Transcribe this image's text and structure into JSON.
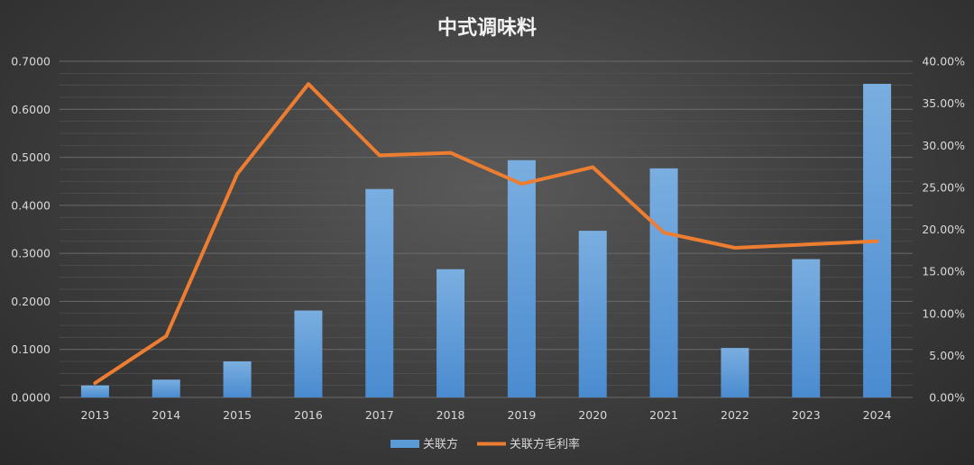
{
  "chart_data": {
    "type": "bar",
    "title": "中式调味料",
    "categories": [
      "2013",
      "2014",
      "2015",
      "2016",
      "2017",
      "2018",
      "2019",
      "2020",
      "2021",
      "2022",
      "2023",
      "2024"
    ],
    "series": [
      {
        "name": "关联方",
        "type": "bar",
        "axis": "left",
        "color": "#5b9bd5",
        "values": [
          0.025,
          0.037,
          0.075,
          0.181,
          0.434,
          0.267,
          0.494,
          0.347,
          0.477,
          0.103,
          0.288,
          0.653
        ]
      },
      {
        "name": "关联方毛利率",
        "type": "line",
        "axis": "right",
        "color": "#ed7d31",
        "values": [
          0.017,
          0.073,
          0.266,
          0.373,
          0.288,
          0.291,
          0.254,
          0.274,
          0.196,
          0.178,
          0.182,
          0.186
        ]
      }
    ],
    "y_left": {
      "ylim": [
        0,
        0.7
      ],
      "ticks": [
        "0.0000",
        "0.1000",
        "0.2000",
        "0.3000",
        "0.4000",
        "0.5000",
        "0.6000",
        "0.7000"
      ]
    },
    "y_right": {
      "ylim": [
        0,
        0.4
      ],
      "ticks": [
        "0.00%",
        "5.00%",
        "10.00%",
        "15.00%",
        "20.00%",
        "25.00%",
        "30.00%",
        "35.00%",
        "40.00%"
      ]
    },
    "grid": true,
    "legend_position": "bottom"
  }
}
